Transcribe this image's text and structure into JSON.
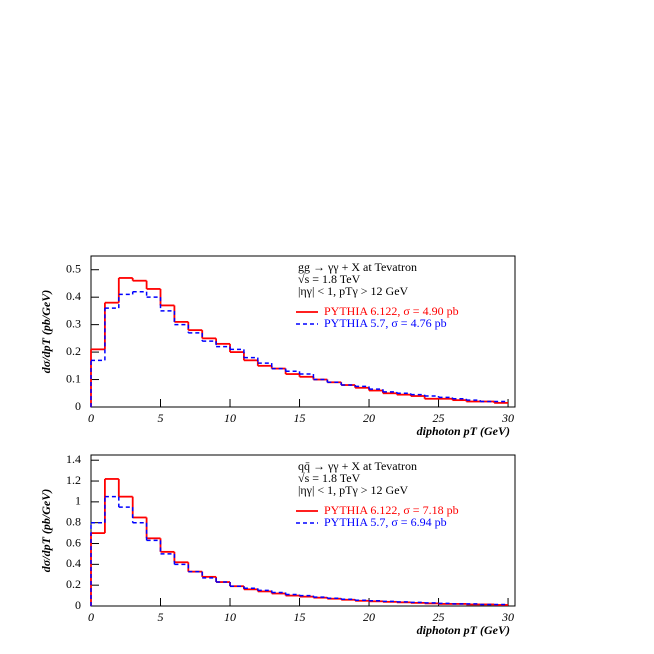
{
  "chart_data": [
    {
      "type": "histogram",
      "x_label": "diphoton pT (GeV)",
      "y_label": "dσ/dpT (pb/GeV)",
      "annotations": [
        "gg → γγ + X  at  Tevatron",
        "√s = 1.8 TeV",
        "|ηγ| < 1, pTγ > 12 GeV"
      ],
      "bins": [
        0,
        1,
        2,
        3,
        4,
        5,
        6,
        7,
        8,
        9,
        10,
        11,
        12,
        13,
        14,
        15,
        16,
        17,
        18,
        19,
        20,
        21,
        22,
        23,
        24,
        25,
        26,
        27,
        28,
        29,
        30
      ],
      "series": [
        {
          "name": "PYTHIA 6.122, σ = 4.90 pb",
          "color": "#ff0000",
          "dash": false,
          "values": [
            0.21,
            0.38,
            0.47,
            0.46,
            0.43,
            0.37,
            0.31,
            0.28,
            0.25,
            0.23,
            0.2,
            0.17,
            0.15,
            0.14,
            0.12,
            0.11,
            0.1,
            0.09,
            0.08,
            0.07,
            0.06,
            0.05,
            0.045,
            0.04,
            0.03,
            0.03,
            0.025,
            0.02,
            0.02,
            0.015
          ]
        },
        {
          "name": "PYTHIA 5.7, σ = 4.76 pb",
          "color": "#0000ff",
          "dash": true,
          "values": [
            0.17,
            0.36,
            0.41,
            0.42,
            0.4,
            0.35,
            0.3,
            0.27,
            0.24,
            0.22,
            0.21,
            0.18,
            0.16,
            0.14,
            0.13,
            0.12,
            0.1,
            0.09,
            0.08,
            0.075,
            0.065,
            0.055,
            0.05,
            0.045,
            0.04,
            0.035,
            0.03,
            0.025,
            0.02,
            0.02
          ]
        }
      ],
      "xlim": [
        0,
        30.5
      ],
      "xticks": [
        0,
        5,
        10,
        15,
        20,
        25,
        30
      ],
      "ylim": [
        0,
        0.55
      ],
      "yticks": [
        0,
        0.1,
        0.2,
        0.3,
        0.4,
        0.5
      ],
      "legend": "upper right"
    },
    {
      "type": "histogram",
      "x_label": "diphoton pT (GeV)",
      "y_label": "dσ/dpT (pb/GeV)",
      "annotations": [
        "qq̄ → γγ + X  at  Tevatron",
        "√s = 1.8 TeV",
        "|ηγ| < 1, pTγ > 12 GeV"
      ],
      "bins": [
        0,
        1,
        2,
        3,
        4,
        5,
        6,
        7,
        8,
        9,
        10,
        11,
        12,
        13,
        14,
        15,
        16,
        17,
        18,
        19,
        20,
        21,
        22,
        23,
        24,
        25,
        26,
        27,
        28,
        29,
        30
      ],
      "series": [
        {
          "name": "PYTHIA 6.122, σ = 7.18 pb",
          "color": "#ff0000",
          "dash": false,
          "values": [
            0.7,
            1.22,
            1.05,
            0.85,
            0.65,
            0.52,
            0.42,
            0.33,
            0.28,
            0.23,
            0.19,
            0.16,
            0.14,
            0.12,
            0.1,
            0.09,
            0.08,
            0.07,
            0.06,
            0.05,
            0.045,
            0.04,
            0.035,
            0.03,
            0.025,
            0.02,
            0.02,
            0.015,
            0.015,
            0.01
          ]
        },
        {
          "name": "PYTHIA 5.7, σ = 6.94 pb",
          "color": "#0000ff",
          "dash": true,
          "values": [
            0.8,
            1.05,
            0.95,
            0.8,
            0.63,
            0.5,
            0.4,
            0.33,
            0.27,
            0.23,
            0.19,
            0.17,
            0.15,
            0.13,
            0.11,
            0.1,
            0.085,
            0.075,
            0.065,
            0.055,
            0.05,
            0.045,
            0.04,
            0.035,
            0.03,
            0.025,
            0.02,
            0.02,
            0.015,
            0.015
          ]
        }
      ],
      "xlim": [
        0,
        30.5
      ],
      "xticks": [
        0,
        5,
        10,
        15,
        20,
        25,
        30
      ],
      "ylim": [
        0,
        1.45
      ],
      "yticks": [
        0,
        0.2,
        0.4,
        0.6,
        0.8,
        1,
        1.2,
        1.4
      ],
      "legend": "upper right"
    }
  ]
}
